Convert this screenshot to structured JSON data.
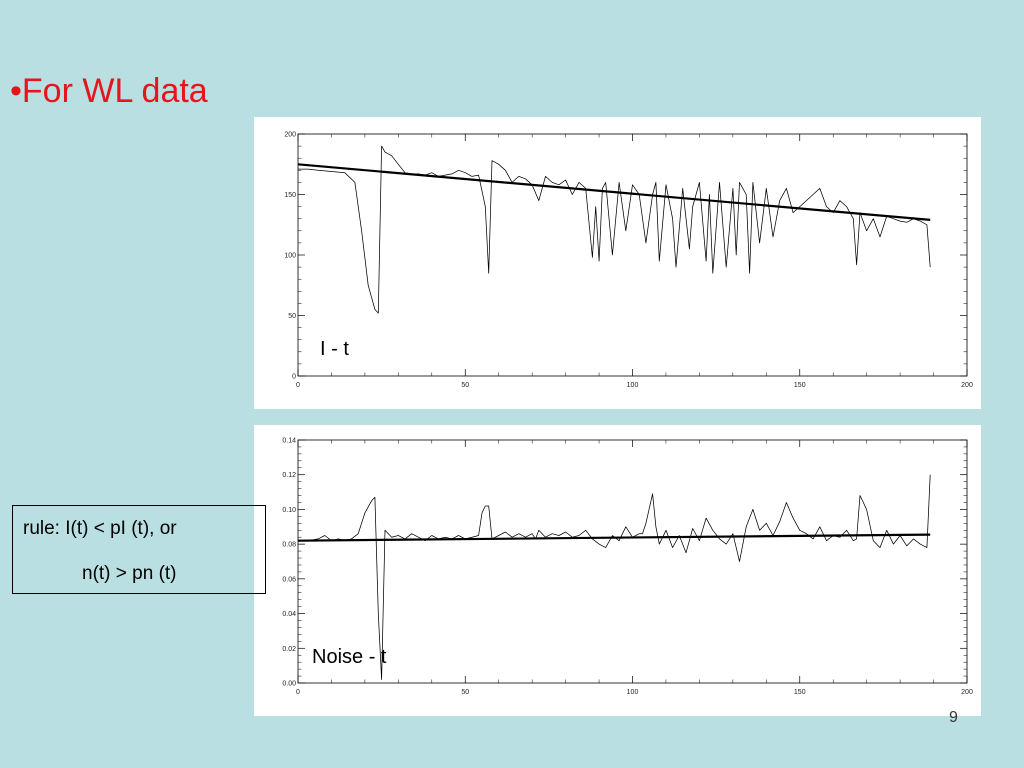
{
  "slide": {
    "heading": "•For WL data",
    "rule_line1": "rule: I(t) < pI (t), or",
    "rule_line2": "n(t) > pn (t)",
    "page_number": "9"
  },
  "chart_data": [
    {
      "type": "line",
      "annotation": "I - t",
      "xlim": [
        0,
        200
      ],
      "ylim": [
        0,
        200
      ],
      "x_ticks": [
        0,
        50,
        100,
        150,
        200
      ],
      "y_ticks": [
        0,
        50,
        100,
        150,
        200
      ],
      "x_tick_labels": [
        "0",
        "50",
        "100",
        "150",
        "200"
      ],
      "y_tick_labels": [
        "0",
        "50",
        "100",
        "150",
        "200"
      ],
      "series": [
        {
          "role": "data",
          "x": [
            0,
            3,
            6,
            10,
            14,
            17,
            19,
            21,
            23,
            24,
            25,
            26,
            28,
            30,
            32,
            34,
            36,
            38,
            40,
            42,
            44,
            46,
            48,
            50,
            52,
            54,
            56,
            57,
            58,
            60,
            62,
            64,
            66,
            68,
            70,
            72,
            74,
            76,
            78,
            80,
            82,
            84,
            86,
            88,
            89,
            90,
            91,
            92,
            94,
            96,
            98,
            100,
            102,
            104,
            106,
            107,
            108,
            110,
            112,
            113,
            115,
            117,
            118,
            120,
            122,
            123,
            124,
            126,
            128,
            130,
            131,
            132,
            134,
            135,
            136,
            138,
            140,
            142,
            144,
            146,
            148,
            150,
            152,
            154,
            156,
            158,
            160,
            162,
            164,
            166,
            167,
            168,
            170,
            172,
            174,
            176,
            178,
            180,
            182,
            184,
            186,
            188,
            189
          ],
          "y": [
            171,
            171,
            170,
            169,
            168,
            160,
            120,
            75,
            55,
            52,
            190,
            185,
            182,
            175,
            168,
            167,
            167,
            166,
            168,
            165,
            166,
            167,
            170,
            168,
            165,
            166,
            140,
            85,
            178,
            175,
            170,
            160,
            165,
            163,
            158,
            145,
            165,
            160,
            158,
            162,
            150,
            160,
            155,
            98,
            140,
            95,
            155,
            160,
            100,
            160,
            120,
            158,
            150,
            110,
            150,
            160,
            95,
            158,
            130,
            90,
            155,
            105,
            140,
            160,
            95,
            150,
            85,
            160,
            90,
            155,
            100,
            160,
            150,
            85,
            160,
            110,
            155,
            115,
            145,
            155,
            135,
            140,
            145,
            150,
            155,
            140,
            135,
            145,
            140,
            130,
            92,
            135,
            120,
            130,
            115,
            132,
            130,
            128,
            127,
            130,
            128,
            125,
            90
          ]
        },
        {
          "role": "fit",
          "x": [
            0,
            189
          ],
          "y": [
            175,
            129
          ]
        }
      ]
    },
    {
      "type": "line",
      "annotation": "Noise - t",
      "xlim": [
        0,
        200
      ],
      "ylim": [
        0,
        0.14
      ],
      "x_ticks": [
        0,
        50,
        100,
        150,
        200
      ],
      "y_ticks": [
        0,
        0.02,
        0.04,
        0.06,
        0.08,
        0.1,
        0.12,
        0.14
      ],
      "x_tick_labels": [
        "0",
        "50",
        "100",
        "150",
        "200"
      ],
      "y_tick_labels": [
        "0.00",
        "0.02",
        "0.04",
        "0.06",
        "0.08",
        "0.10",
        "0.12",
        "0.14"
      ],
      "series": [
        {
          "role": "data",
          "x": [
            0,
            3,
            6,
            8,
            10,
            12,
            14,
            16,
            18,
            20,
            22,
            23,
            24,
            25,
            26,
            28,
            30,
            32,
            34,
            36,
            38,
            40,
            42,
            44,
            46,
            48,
            50,
            52,
            54,
            55,
            56,
            57,
            58,
            60,
            62,
            64,
            66,
            68,
            70,
            71,
            72,
            74,
            76,
            78,
            80,
            82,
            84,
            86,
            88,
            90,
            92,
            94,
            96,
            98,
            100,
            102,
            103,
            104,
            106,
            107,
            108,
            110,
            112,
            114,
            116,
            118,
            120,
            122,
            124,
            126,
            128,
            130,
            132,
            134,
            136,
            138,
            140,
            142,
            144,
            146,
            148,
            150,
            152,
            154,
            156,
            158,
            160,
            162,
            164,
            166,
            167,
            168,
            170,
            172,
            174,
            176,
            178,
            180,
            182,
            184,
            186,
            188,
            189
          ],
          "y": [
            0.082,
            0.082,
            0.083,
            0.085,
            0.082,
            0.083,
            0.082,
            0.083,
            0.086,
            0.098,
            0.105,
            0.107,
            0.04,
            0.002,
            0.088,
            0.084,
            0.085,
            0.083,
            0.086,
            0.084,
            0.082,
            0.085,
            0.083,
            0.084,
            0.083,
            0.085,
            0.083,
            0.084,
            0.085,
            0.098,
            0.102,
            0.102,
            0.083,
            0.085,
            0.087,
            0.084,
            0.086,
            0.084,
            0.086,
            0.083,
            0.088,
            0.084,
            0.086,
            0.085,
            0.087,
            0.084,
            0.085,
            0.088,
            0.083,
            0.08,
            0.078,
            0.085,
            0.082,
            0.09,
            0.084,
            0.086,
            0.086,
            0.092,
            0.109,
            0.09,
            0.08,
            0.088,
            0.078,
            0.085,
            0.075,
            0.089,
            0.082,
            0.095,
            0.088,
            0.083,
            0.08,
            0.086,
            0.07,
            0.09,
            0.1,
            0.088,
            0.092,
            0.085,
            0.093,
            0.104,
            0.095,
            0.088,
            0.086,
            0.083,
            0.09,
            0.082,
            0.085,
            0.084,
            0.088,
            0.082,
            0.083,
            0.108,
            0.1,
            0.082,
            0.078,
            0.088,
            0.08,
            0.085,
            0.079,
            0.083,
            0.08,
            0.078,
            0.12
          ]
        },
        {
          "role": "fit",
          "x": [
            0,
            189
          ],
          "y": [
            0.082,
            0.0855
          ]
        }
      ]
    }
  ]
}
